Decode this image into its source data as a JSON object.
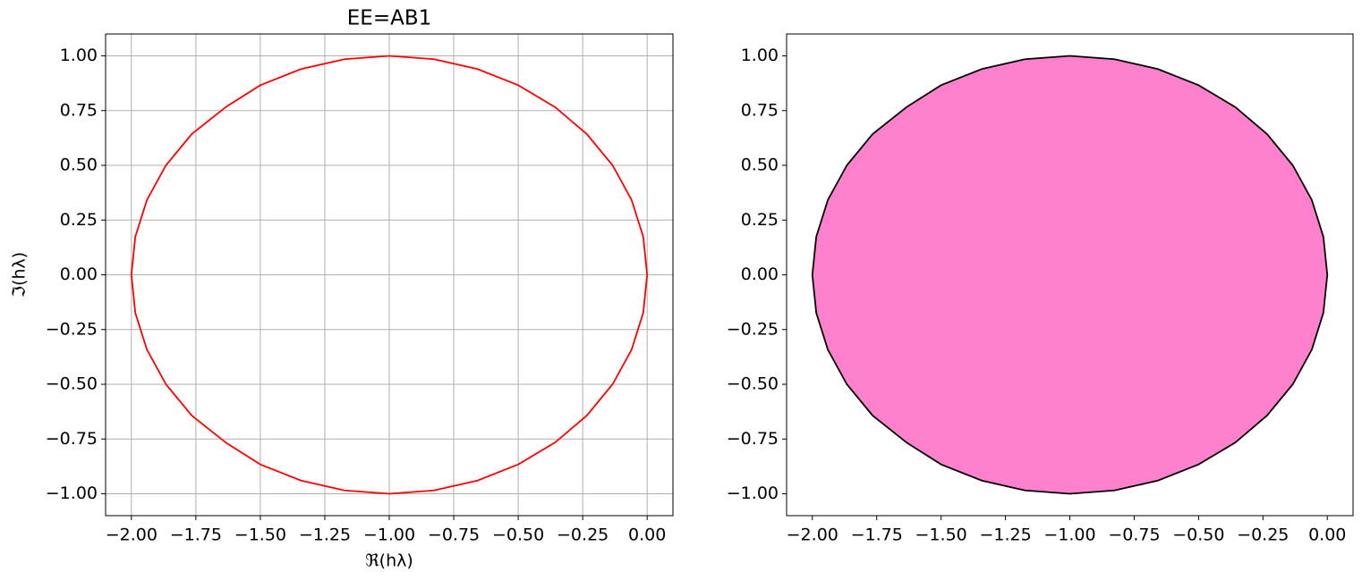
{
  "chart_data": [
    {
      "type": "line",
      "title": "EE=AB1",
      "xlabel": "ℜ(hλ)",
      "ylabel": "ℑ(hλ)",
      "grid": true,
      "color": "#ff0000",
      "x": [
        0,
        -0.0152,
        -0.0603,
        -0.134,
        -0.234,
        -0.3572,
        -0.5,
        -0.658,
        -0.8264,
        -1,
        -1.1736,
        -1.342,
        -1.5,
        -1.634,
        -1.766,
        -1.866,
        -1.9397,
        -1.9848,
        -2,
        -1.9848,
        -1.9397,
        -1.866,
        -1.766,
        -1.634,
        -1.5,
        -1.342,
        -1.1736,
        -1,
        -0.8264,
        -0.658,
        -0.5,
        -0.3572,
        -0.234,
        -0.134,
        -0.0603,
        -0.0152,
        0
      ],
      "values": [
        0,
        0.1736,
        0.342,
        0.5,
        0.6428,
        0.766,
        0.866,
        0.9397,
        0.9848,
        1,
        0.9848,
        0.9397,
        0.866,
        0.766,
        0.6428,
        0.5,
        0.342,
        0.1736,
        0,
        -0.1736,
        -0.342,
        -0.5,
        -0.6428,
        -0.766,
        -0.866,
        -0.9397,
        -0.9848,
        -1,
        -0.9848,
        -0.9397,
        -0.866,
        -0.766,
        -0.6428,
        -0.5,
        -0.342,
        -0.1736,
        0
      ],
      "xlim": [
        -2.1,
        0.1
      ],
      "ylim": [
        -1.1,
        1.1
      ],
      "xticks": [
        {
          "value": -2,
          "label": "−2.00"
        },
        {
          "value": -1.75,
          "label": "−1.75"
        },
        {
          "value": -1.5,
          "label": "−1.50"
        },
        {
          "value": -1.25,
          "label": "−1.25"
        },
        {
          "value": -1,
          "label": "−1.00"
        },
        {
          "value": -0.75,
          "label": "−0.75"
        },
        {
          "value": -0.5,
          "label": "−0.50"
        },
        {
          "value": -0.25,
          "label": "−0.25"
        },
        {
          "value": 0,
          "label": "0.00"
        }
      ],
      "yticks": [
        {
          "value": -1,
          "label": "−1.00"
        },
        {
          "value": -0.75,
          "label": "−0.75"
        },
        {
          "value": -0.5,
          "label": "−0.50"
        },
        {
          "value": -0.25,
          "label": "−0.25"
        },
        {
          "value": 0,
          "label": "0.00"
        },
        {
          "value": 0.25,
          "label": "0.25"
        },
        {
          "value": 0.5,
          "label": "0.50"
        },
        {
          "value": 0.75,
          "label": "0.75"
        },
        {
          "value": 1,
          "label": "1.00"
        }
      ]
    },
    {
      "type": "fill",
      "grid": false,
      "color": "#ff80cc",
      "edgecolor": "#000000",
      "x": [
        0,
        -0.0152,
        -0.0603,
        -0.134,
        -0.234,
        -0.3572,
        -0.5,
        -0.658,
        -0.8264,
        -1,
        -1.1736,
        -1.342,
        -1.5,
        -1.634,
        -1.766,
        -1.866,
        -1.9397,
        -1.9848,
        -2,
        -1.9848,
        -1.9397,
        -1.866,
        -1.766,
        -1.634,
        -1.5,
        -1.342,
        -1.1736,
        -1,
        -0.8264,
        -0.658,
        -0.5,
        -0.3572,
        -0.234,
        -0.134,
        -0.0603,
        -0.0152,
        0
      ],
      "values": [
        0,
        0.1736,
        0.342,
        0.5,
        0.6428,
        0.766,
        0.866,
        0.9397,
        0.9848,
        1,
        0.9848,
        0.9397,
        0.866,
        0.766,
        0.6428,
        0.5,
        0.342,
        0.1736,
        0,
        -0.1736,
        -0.342,
        -0.5,
        -0.6428,
        -0.766,
        -0.866,
        -0.9397,
        -0.9848,
        -1,
        -0.9848,
        -0.9397,
        -0.866,
        -0.766,
        -0.6428,
        -0.5,
        -0.342,
        -0.1736,
        0
      ],
      "xlim": [
        -2.1,
        0.1
      ],
      "ylim": [
        -1.1,
        1.1
      ],
      "xticks": [
        {
          "value": -2,
          "label": "−2.00"
        },
        {
          "value": -1.75,
          "label": "−1.75"
        },
        {
          "value": -1.5,
          "label": "−1.50"
        },
        {
          "value": -1.25,
          "label": "−1.25"
        },
        {
          "value": -1,
          "label": "−1.00"
        },
        {
          "value": -0.75,
          "label": "−0.75"
        },
        {
          "value": -0.5,
          "label": "−0.50"
        },
        {
          "value": -0.25,
          "label": "−0.25"
        },
        {
          "value": 0,
          "label": "0.00"
        }
      ],
      "yticks": [
        {
          "value": -1,
          "label": "−1.00"
        },
        {
          "value": -0.75,
          "label": "−0.75"
        },
        {
          "value": -0.5,
          "label": "−0.50"
        },
        {
          "value": -0.25,
          "label": "−0.25"
        },
        {
          "value": 0,
          "label": "0.00"
        },
        {
          "value": 0.25,
          "label": "0.25"
        },
        {
          "value": 0.5,
          "label": "0.50"
        },
        {
          "value": 0.75,
          "label": "0.75"
        },
        {
          "value": 1,
          "label": "1.00"
        }
      ]
    }
  ]
}
